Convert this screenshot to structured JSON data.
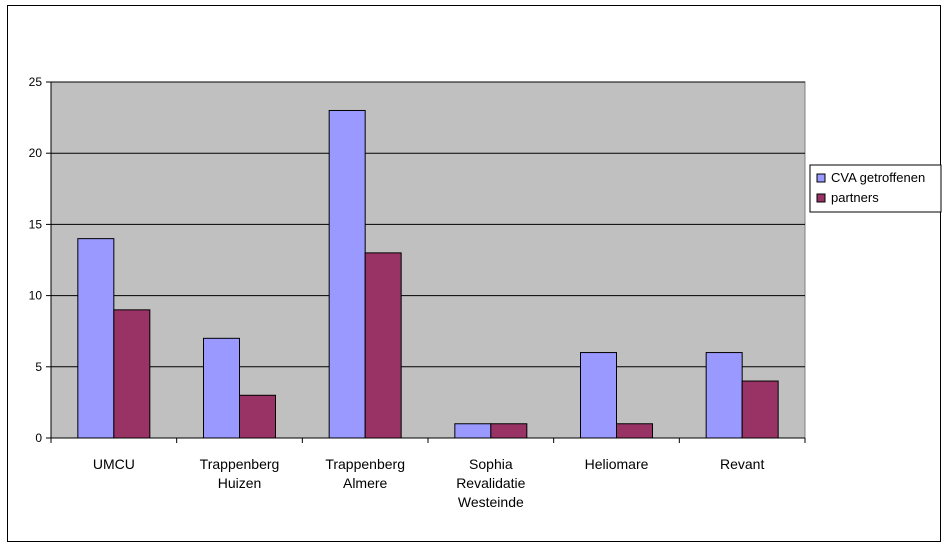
{
  "chart_data": {
    "type": "bar",
    "categories": [
      [
        "UMCU"
      ],
      [
        "Trappenberg",
        "Huizen"
      ],
      [
        "Trappenberg",
        "Almere"
      ],
      [
        "Sophia",
        "Revalidatie",
        "Westeinde"
      ],
      [
        "Heliomare"
      ],
      [
        "Revant"
      ]
    ],
    "series": [
      {
        "name": "CVA getroffenen",
        "values": [
          14,
          7,
          23,
          1,
          6,
          6
        ],
        "color": "#9999ff"
      },
      {
        "name": "partners",
        "values": [
          9,
          3,
          13,
          1,
          1,
          4
        ],
        "color": "#993366"
      }
    ],
    "ylim": [
      0,
      25
    ],
    "yticks": [
      0,
      5,
      10,
      15,
      20,
      25
    ],
    "grid": true,
    "plot_background": "#c0c0c0",
    "legend_position": "right"
  }
}
